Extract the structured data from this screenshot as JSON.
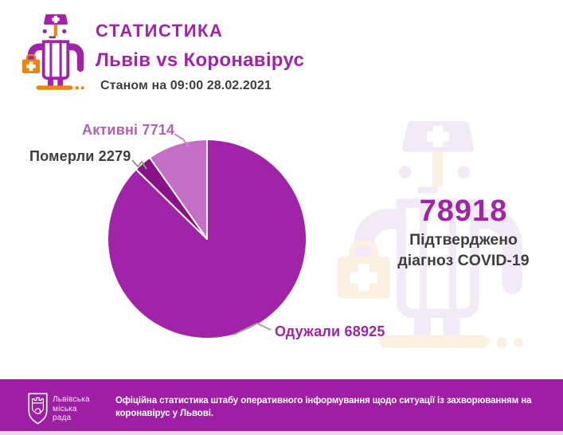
{
  "header": {
    "title": "СТАТИСТИКА",
    "subtitle": "Львів vs Коронавірус",
    "as_of": "Станом на 09:00 28.02.2021"
  },
  "summary": {
    "confirmed_total": "78918",
    "caption_lines": [
      "Підтверджено",
      "діагноз COVID-19"
    ]
  },
  "chart_data": {
    "type": "pie",
    "title": "Львів vs Коронавірус",
    "total": 78918,
    "start_angle_deg": 0,
    "direction": "clockwise",
    "slices": [
      {
        "label": "Одужали",
        "value": 68925,
        "color": "#A124A8"
      },
      {
        "label": "Померли",
        "value": 2279,
        "color": "#8A1288"
      },
      {
        "label": "Активні",
        "value": 7714,
        "color": "#C36FC5"
      }
    ],
    "callouts": [
      {
        "text": "Активні 7714",
        "color": "#B25FB7"
      },
      {
        "text": "Померли 2279",
        "color": "#3E3E41"
      },
      {
        "text": "Одужали 68925",
        "color": "#A124A8"
      }
    ]
  },
  "footer": {
    "logo_lines": [
      "Львівська",
      "міська",
      "рада"
    ],
    "text_lines": [
      "Офіційна статистика штабу оперативного інформування щодо ситуації із захворюванням на",
      "коронавірус у Львові."
    ]
  },
  "colors": {
    "accent_magenta": "#A124A8",
    "accent_orange": "#EF830F",
    "dark_text": "#3E3E41",
    "footer_bar": "#9E1FA3",
    "footer_strip": "#EAD4E9",
    "watermark_lavender": "#F2EAF6",
    "watermark_orange": "#FBF1E3"
  }
}
